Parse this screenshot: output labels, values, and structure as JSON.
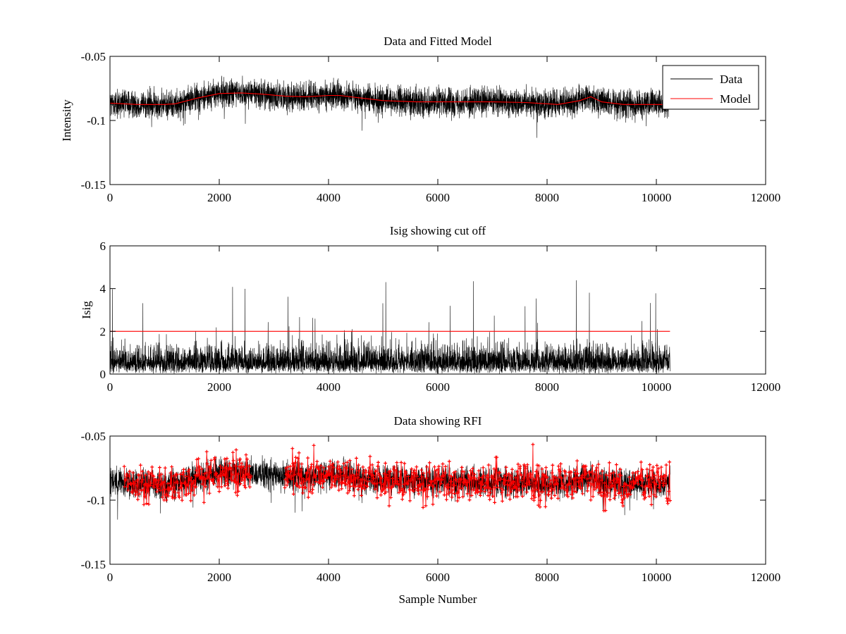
{
  "chart_data": [
    {
      "type": "line",
      "title": "Data and Fitted Model",
      "xlabel": "",
      "ylabel": "Intensity",
      "xlim": [
        0,
        12000
      ],
      "ylim": [
        -0.15,
        -0.05
      ],
      "y_reversed": true,
      "xticks": [
        0,
        2000,
        4000,
        6000,
        8000,
        10000,
        12000
      ],
      "yticks": [
        -0.05,
        -0.1,
        -0.15
      ],
      "xtick_labels": [
        "0",
        "2000",
        "4000",
        "6000",
        "8000",
        "10000",
        "12000"
      ],
      "ytick_labels": [
        "-0.05",
        "-0.1",
        "-0.15"
      ],
      "grid": false,
      "legend": {
        "position": "top-right",
        "entries": [
          "Data",
          "Model"
        ]
      },
      "series": [
        {
          "name": "Data",
          "color": "#000000",
          "style": "noisy-line",
          "x_range": [
            0,
            10250
          ],
          "noise_amplitude": 0.009,
          "baseline_ref": "Model"
        },
        {
          "name": "Model",
          "color": "#ff0000",
          "x": [
            0,
            500,
            1000,
            1200,
            1600,
            2000,
            2400,
            2800,
            3200,
            3600,
            4000,
            4200,
            4600,
            5000,
            5600,
            6000,
            6600,
            7000,
            7600,
            8200,
            8600,
            8800,
            9000,
            9400,
            10000,
            10250
          ],
          "y": [
            -0.0865,
            -0.0875,
            -0.0875,
            -0.087,
            -0.0825,
            -0.079,
            -0.0785,
            -0.0795,
            -0.081,
            -0.0815,
            -0.0805,
            -0.0805,
            -0.0825,
            -0.0845,
            -0.0855,
            -0.0855,
            -0.0855,
            -0.0855,
            -0.086,
            -0.0875,
            -0.0845,
            -0.0815,
            -0.0855,
            -0.0875,
            -0.0875,
            -0.0875
          ]
        }
      ]
    },
    {
      "type": "line",
      "title": "Isig showing cut off",
      "xlabel": "",
      "ylabel": "Isig",
      "xlim": [
        0,
        12000
      ],
      "ylim": [
        0,
        6
      ],
      "xticks": [
        0,
        2000,
        4000,
        6000,
        8000,
        10000,
        12000
      ],
      "yticks": [
        0,
        2,
        4,
        6
      ],
      "xtick_labels": [
        "0",
        "2000",
        "4000",
        "6000",
        "8000",
        "10000",
        "12000"
      ],
      "ytick_labels": [
        "0",
        "2",
        "4",
        "6"
      ],
      "grid": false,
      "series": [
        {
          "color": "#000000",
          "style": "noisy-positive",
          "x_range": [
            0,
            10250
          ],
          "typical_max": 2.0,
          "peak_max": 4.4
        },
        {
          "color": "#ff0000",
          "x": [
            0,
            10250
          ],
          "y": [
            2,
            2
          ]
        }
      ]
    },
    {
      "type": "line",
      "title": "Data showing RFI",
      "xlabel": "Sample Number",
      "ylabel": "",
      "xlim": [
        0,
        12000
      ],
      "ylim": [
        -0.15,
        -0.05
      ],
      "y_reversed": true,
      "xticks": [
        0,
        2000,
        4000,
        6000,
        8000,
        10000,
        12000
      ],
      "yticks": [
        -0.05,
        -0.1,
        -0.15
      ],
      "xtick_labels": [
        "0",
        "2000",
        "4000",
        "6000",
        "8000",
        "10000",
        "12000"
      ],
      "ytick_labels": [
        "-0.05",
        "-0.1",
        "-0.15"
      ],
      "grid": false,
      "series": [
        {
          "color": "#000000",
          "style": "noisy-line",
          "x_range": [
            0,
            10250
          ],
          "noise_amplitude": 0.009,
          "baseline_ref": "Model"
        },
        {
          "color": "#ff0000",
          "style": "flagged-markers",
          "marker": "+",
          "flagged_ranges": [
            [
              260,
              540
            ],
            [
              560,
              2580
            ],
            [
              3200,
              10250
            ]
          ],
          "noise_amplitude": 0.012
        }
      ]
    }
  ]
}
